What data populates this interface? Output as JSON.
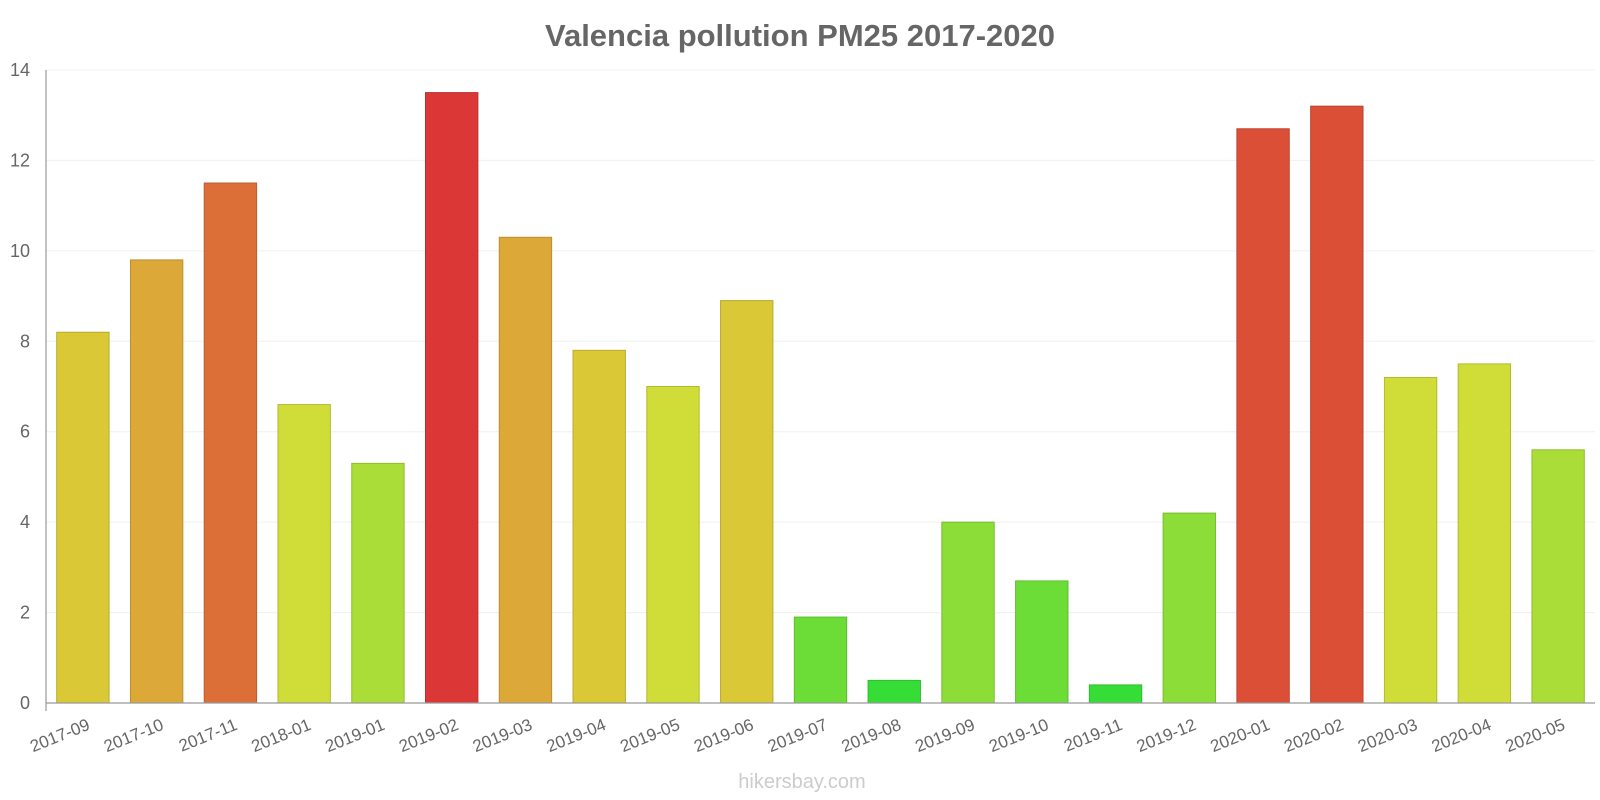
{
  "chart_data": {
    "type": "bar",
    "title": "Valencia pollution PM25 2017-2020",
    "xlabel": "",
    "ylabel": "",
    "ylim": [
      0,
      14
    ],
    "yticks": [
      0,
      2,
      4,
      6,
      8,
      10,
      12,
      14
    ],
    "grid": true,
    "categories": [
      "2017-09",
      "2017-10",
      "2017-11",
      "2018-01",
      "2019-01",
      "2019-02",
      "2019-03",
      "2019-04",
      "2019-05",
      "2019-06",
      "2019-07",
      "2019-08",
      "2019-09",
      "2019-10",
      "2019-11",
      "2019-12",
      "2020-01",
      "2020-02",
      "2020-03",
      "2020-04",
      "2020-05"
    ],
    "values": [
      8.2,
      9.8,
      11.5,
      6.6,
      5.3,
      13.5,
      10.3,
      7.8,
      7.0,
      8.9,
      1.9,
      0.5,
      4.0,
      2.7,
      0.4,
      4.2,
      12.7,
      13.2,
      7.2,
      7.5,
      5.6
    ],
    "colors": [
      "#dbc837",
      "#dca837",
      "#dc6f37",
      "#d0dc37",
      "#aadd37",
      "#dc3737",
      "#dca837",
      "#dbc837",
      "#d0dc37",
      "#dbc837",
      "#6cdd37",
      "#37dd37",
      "#8cdd37",
      "#6cdd37",
      "#37dd37",
      "#8cdd37",
      "#dc4f37",
      "#dc4f37",
      "#d0dc37",
      "#d0dc37",
      "#aadd37"
    ]
  },
  "watermark": "hikersbay.com"
}
